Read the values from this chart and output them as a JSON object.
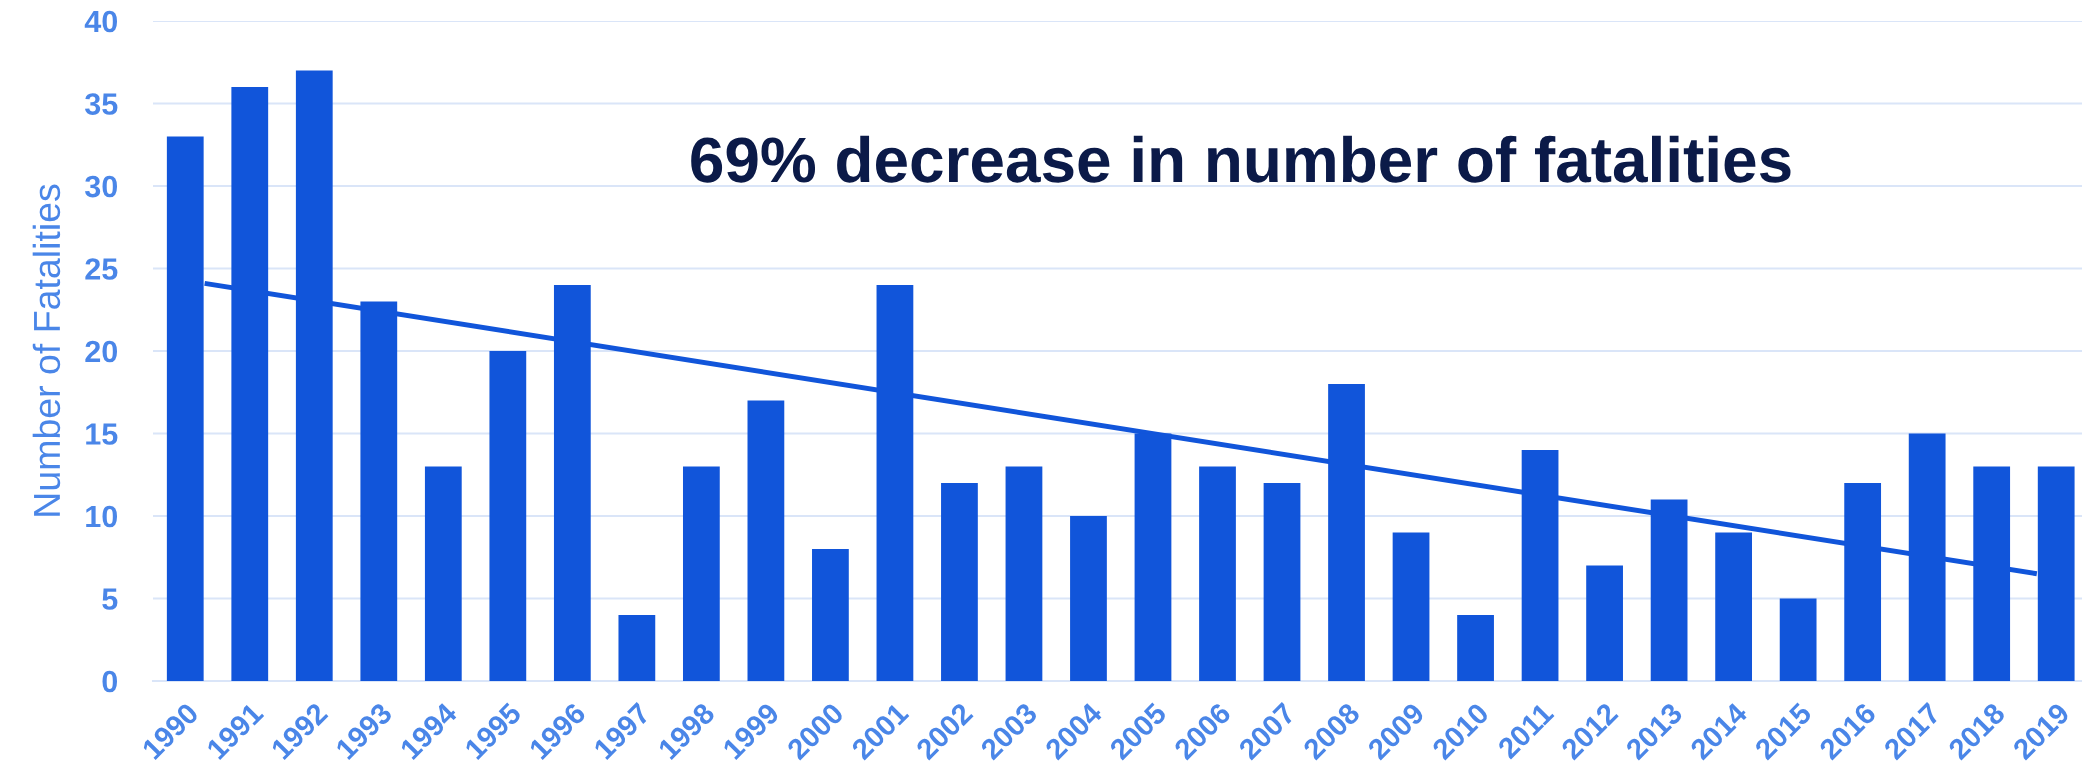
{
  "chart_data": {
    "type": "bar",
    "ylabel": "Number of Fatalities",
    "annotations": [
      "69% decrease in number of fatalities"
    ],
    "x": [
      1990,
      1991,
      1992,
      1993,
      1994,
      1995,
      1996,
      1997,
      1998,
      1999,
      2000,
      2001,
      2002,
      2003,
      2004,
      2005,
      2006,
      2007,
      2008,
      2009,
      2010,
      2011,
      2012,
      2013,
      2014,
      2015,
      2016,
      2017,
      2018,
      2019
    ],
    "series": [
      {
        "color": "#1155da",
        "values": [
          33,
          36,
          37,
          23,
          13,
          20,
          24,
          4,
          13,
          17,
          8,
          24,
          12,
          13,
          10,
          15,
          13,
          12,
          18,
          9,
          4,
          14,
          7,
          11,
          9,
          5,
          12,
          15,
          13,
          13
        ]
      },
      {
        "type": "line",
        "color": "#1155da",
        "x": [
          1990.3,
          2018.7
        ],
        "values": [
          24.1,
          6.5
        ]
      }
    ],
    "xlim": [
      1989.5,
      2019.4
    ],
    "xticks": [
      1990,
      1991,
      1992,
      1993,
      1994,
      1995,
      1996,
      1997,
      1998,
      1999,
      2000,
      2001,
      2002,
      2003,
      2004,
      2005,
      2006,
      2007,
      2008,
      2009,
      2010,
      2011,
      2012,
      2013,
      2014,
      2015,
      2016,
      2017,
      2018,
      2019
    ],
    "ylim": [
      0,
      40
    ],
    "yticks": [
      0,
      5,
      10,
      15,
      20,
      25,
      30,
      35,
      40
    ],
    "grid": "y"
  }
}
